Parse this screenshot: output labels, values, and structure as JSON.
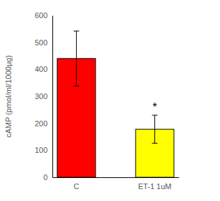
{
  "chart_data": {
    "type": "bar",
    "y_label": "cAMP (pmol/ml/1000μg)",
    "categories": [
      "C",
      "ET-1 1uM"
    ],
    "values": [
      440,
      178
    ],
    "errors": [
      102,
      52
    ],
    "colors": [
      "#ff0000",
      "#ffff00"
    ],
    "ylim": [
      0,
      600
    ],
    "yticks": [
      0,
      100,
      200,
      300,
      400,
      500,
      600
    ],
    "grid": false,
    "annotations": [
      {
        "text": "*",
        "category": "ET-1 1uM"
      }
    ]
  }
}
